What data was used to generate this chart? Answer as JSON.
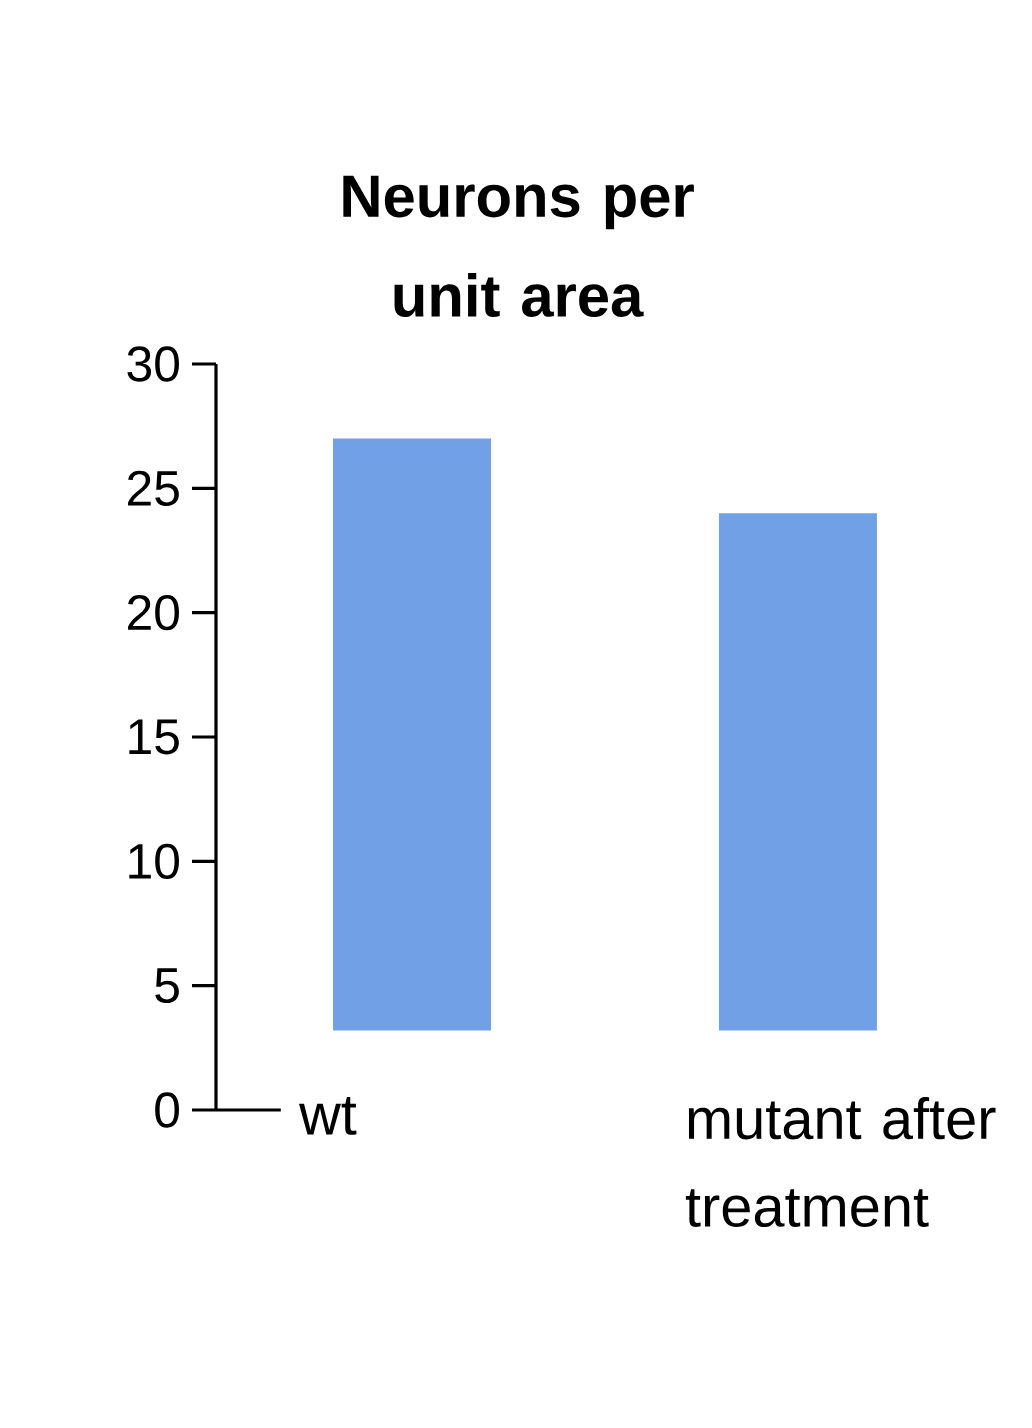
{
  "chart_data": {
    "type": "bar",
    "title": "Neurons per unit area",
    "categories": [
      "wt",
      "mutant after treatment"
    ],
    "values": [
      23.8,
      20.8
    ],
    "base": [
      3.2,
      3.2
    ],
    "color": "#72a0e6",
    "ylim": [
      0,
      30
    ],
    "yticks": [
      0,
      5,
      10,
      15,
      20,
      25,
      30
    ],
    "grid": false
  }
}
